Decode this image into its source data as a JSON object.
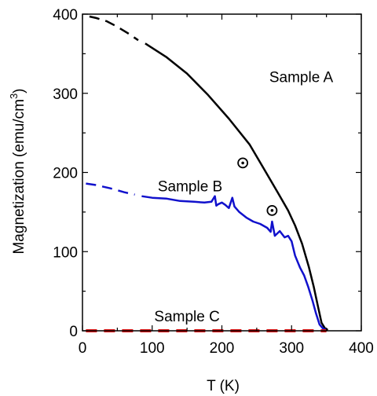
{
  "chart_data": {
    "type": "line",
    "xlabel": "T (K)",
    "ylabel": "Magnetization (emu/cm",
    "ylabel_sup": "3",
    "ylabel_close": ")",
    "xlim": [
      0,
      400
    ],
    "ylim": [
      0,
      400
    ],
    "x_ticks": [
      "0",
      "100",
      "200",
      "300",
      "400"
    ],
    "y_ticks": [
      "0",
      "100",
      "200",
      "300",
      "400"
    ],
    "x_tick_values": [
      0,
      100,
      200,
      300,
      400
    ],
    "y_tick_values": [
      0,
      100,
      200,
      300,
      400
    ],
    "colors": {
      "A": "#000000",
      "B": "#1111cc",
      "C": "#dd1111"
    },
    "series": [
      {
        "name": "Sample A",
        "dashed": [
          [
            10,
            397
          ],
          [
            20,
            395
          ],
          [
            35,
            391
          ],
          [
            50,
            384
          ],
          [
            65,
            376
          ],
          [
            80,
            367
          ]
        ],
        "solid": [
          [
            90,
            363
          ],
          [
            120,
            346
          ],
          [
            150,
            325
          ],
          [
            180,
            298
          ],
          [
            210,
            268
          ],
          [
            240,
            235
          ],
          [
            260,
            205
          ],
          [
            280,
            175
          ],
          [
            295,
            152
          ],
          [
            305,
            133
          ],
          [
            315,
            110
          ],
          [
            325,
            80
          ],
          [
            332,
            55
          ],
          [
            338,
            30
          ],
          [
            343,
            10
          ],
          [
            348,
            3
          ],
          [
            352,
            1
          ]
        ],
        "markers": [
          [
            230,
            212
          ],
          [
            272,
            152
          ]
        ]
      },
      {
        "name": "Sample B",
        "dashed": [
          [
            5,
            186
          ],
          [
            20,
            184
          ],
          [
            40,
            180
          ],
          [
            60,
            175
          ],
          [
            75,
            172
          ]
        ],
        "solid": [
          [
            85,
            170
          ],
          [
            100,
            168
          ],
          [
            120,
            167
          ],
          [
            140,
            164
          ],
          [
            160,
            163
          ],
          [
            175,
            162
          ],
          [
            185,
            163
          ],
          [
            190,
            170
          ],
          [
            192,
            158
          ],
          [
            195,
            160
          ],
          [
            200,
            162
          ],
          [
            205,
            159
          ],
          [
            210,
            155
          ],
          [
            215,
            168
          ],
          [
            218,
            157
          ],
          [
            225,
            150
          ],
          [
            235,
            143
          ],
          [
            245,
            138
          ],
          [
            255,
            135
          ],
          [
            265,
            130
          ],
          [
            270,
            125
          ],
          [
            272,
            138
          ],
          [
            276,
            120
          ],
          [
            283,
            126
          ],
          [
            290,
            118
          ],
          [
            295,
            120
          ],
          [
            300,
            113
          ],
          [
            305,
            95
          ],
          [
            312,
            80
          ],
          [
            318,
            70
          ],
          [
            324,
            55
          ],
          [
            330,
            38
          ],
          [
            335,
            22
          ],
          [
            340,
            8
          ],
          [
            345,
            3
          ],
          [
            350,
            1
          ]
        ]
      },
      {
        "name": "Sample C",
        "dashed": [
          [
            5,
            0
          ],
          [
            350,
            0
          ]
        ]
      }
    ],
    "annotations": [
      {
        "text": "Sample A",
        "x": 268,
        "y": 314
      },
      {
        "text": "Sample B",
        "x": 108,
        "y": 176
      },
      {
        "text": "Sample C",
        "x": 103,
        "y": 12
      }
    ]
  }
}
